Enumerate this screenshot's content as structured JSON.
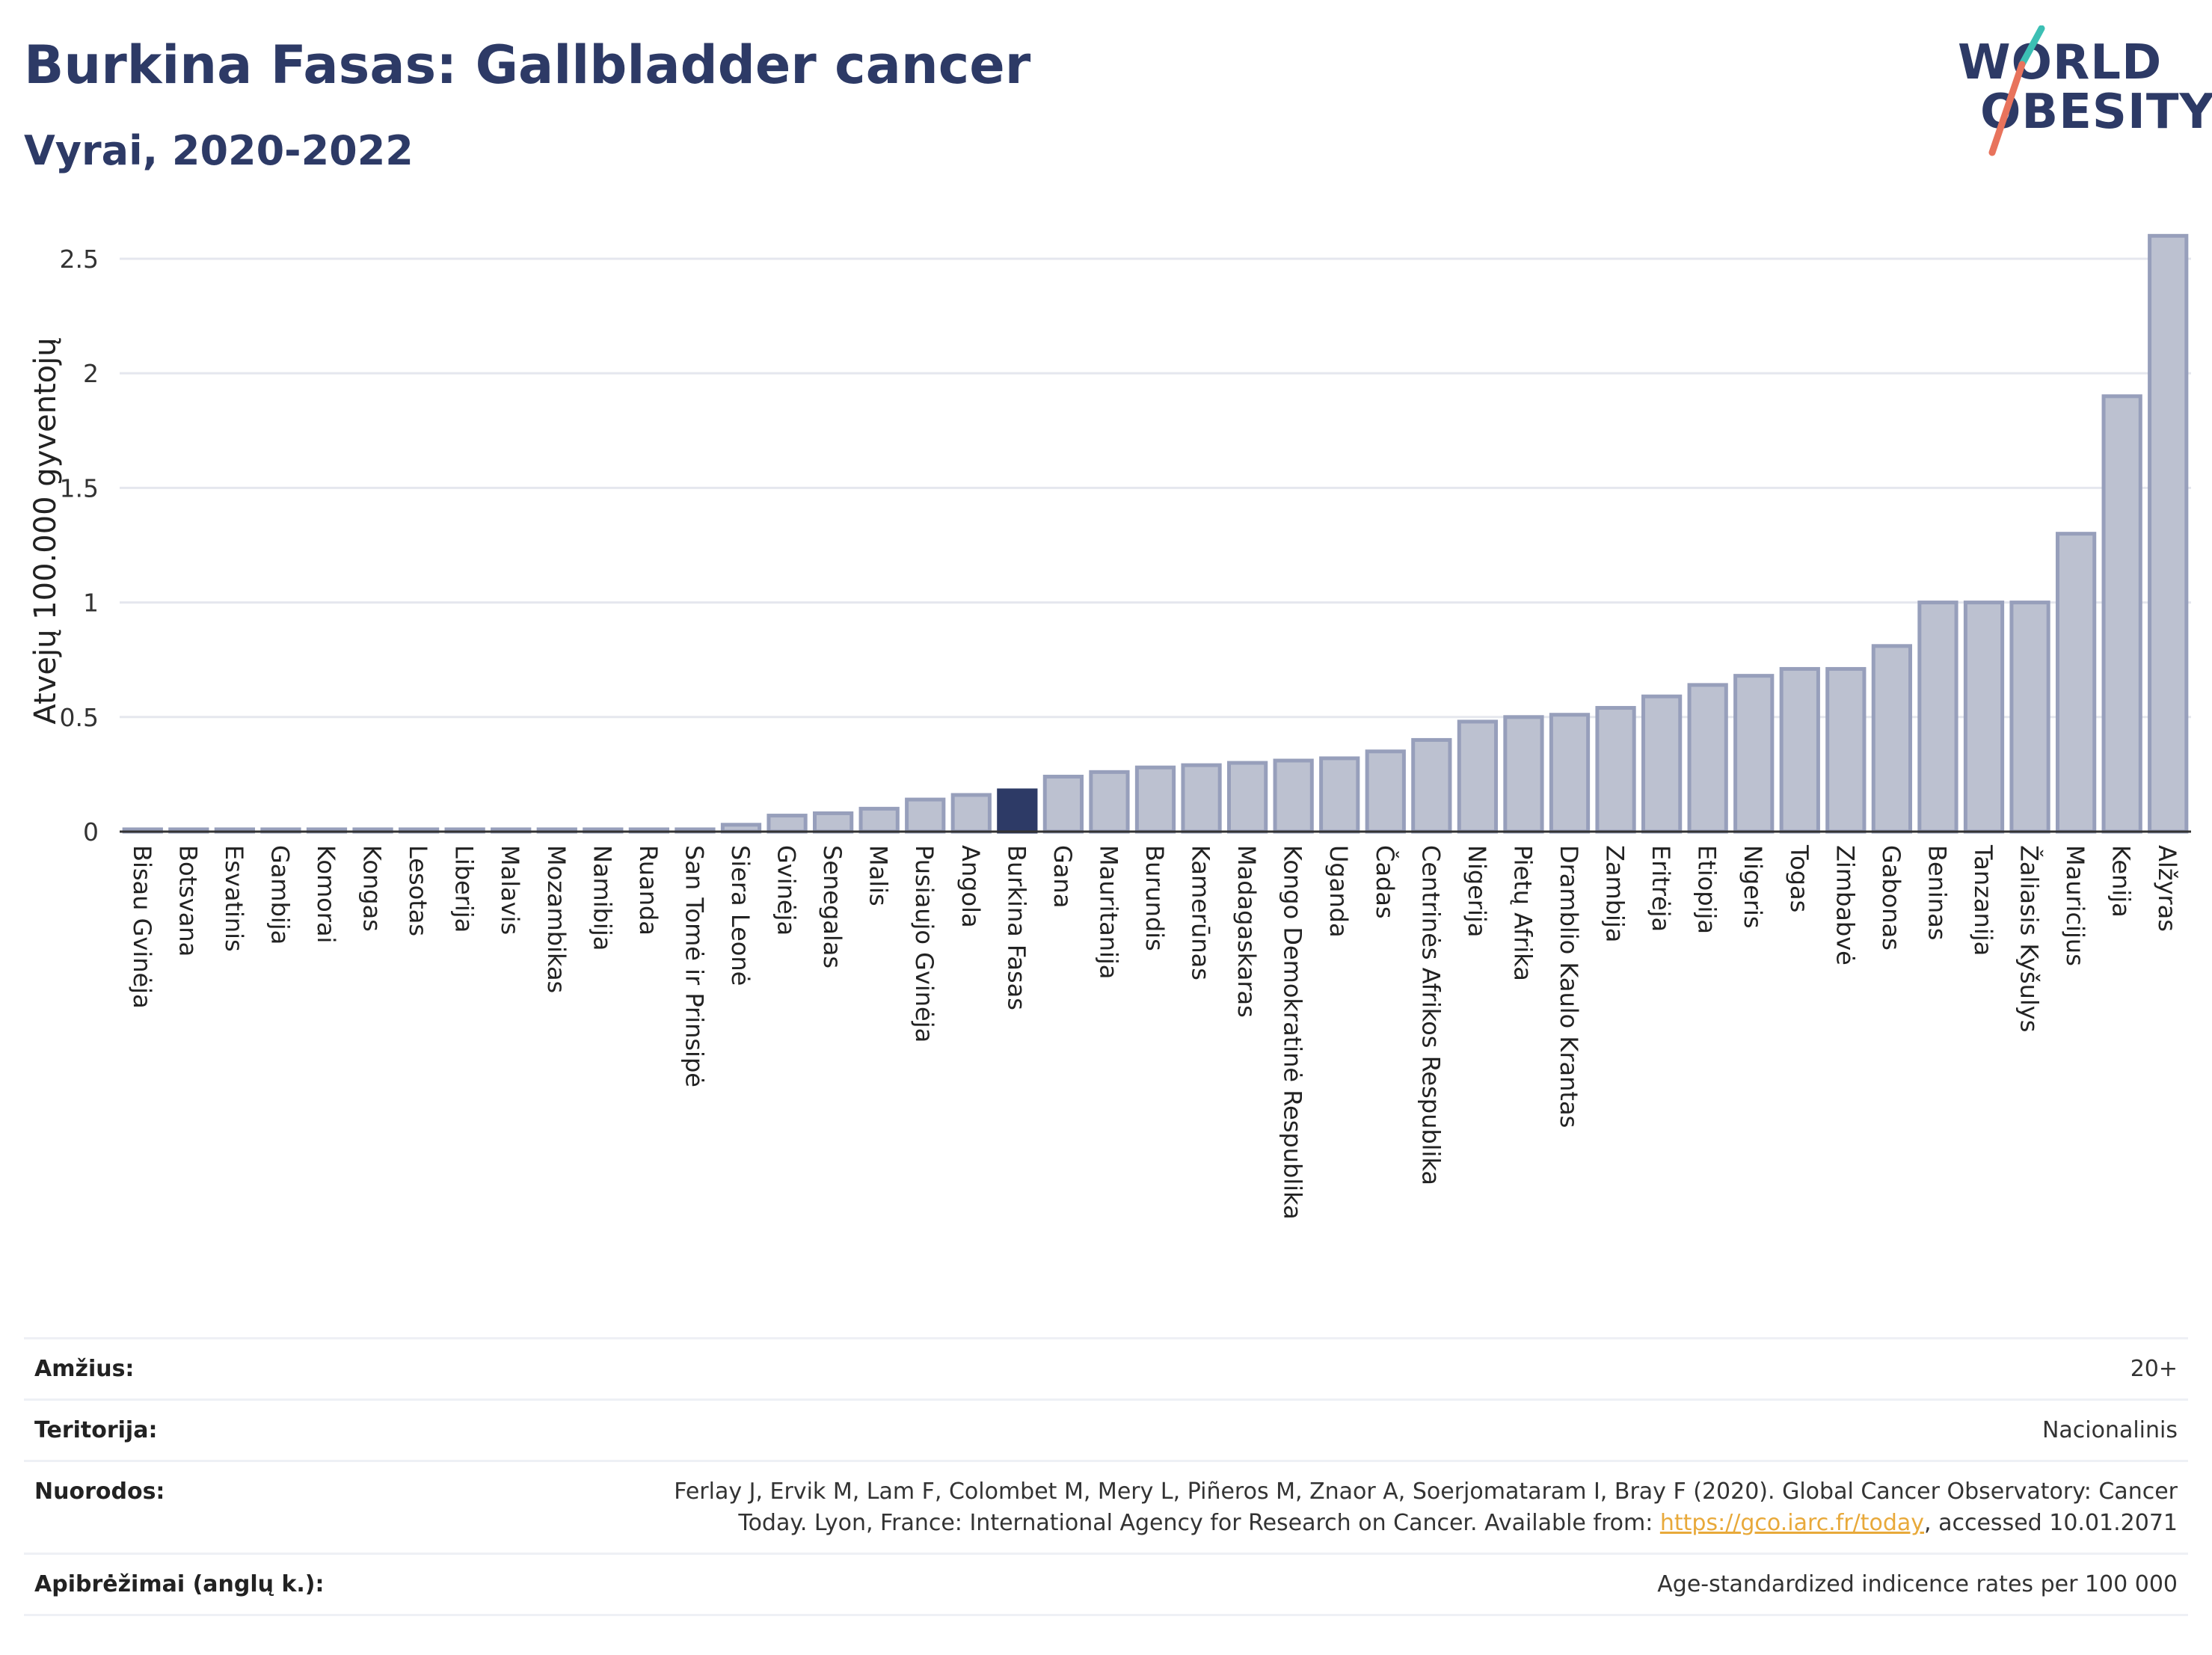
{
  "header": {
    "title": "Burkina Fasas: Gallbladder cancer",
    "subtitle": "Vyrai, 2020-2022"
  },
  "logo": {
    "line1": "WORLD",
    "line2": "OBESITY",
    "colors": {
      "text": "#2d3a66",
      "teal": "#3cbfb4",
      "coral": "#e8735c"
    }
  },
  "chart_data": {
    "type": "bar",
    "ylabel": "Atvejų 100.000 gyventojų",
    "ylim": [
      0,
      2.65
    ],
    "yticks": [
      0,
      0.5,
      1,
      1.5,
      2,
      2.5
    ],
    "ytick_labels": [
      "0",
      "0.5",
      "1",
      "1.5",
      "2",
      "2.5"
    ],
    "grid": true,
    "highlight_category": "Burkina Fasas",
    "colors": {
      "bar": "#bcc1d0",
      "bar_edge": "#979fbb",
      "highlight": "#2d3a66",
      "grid": "#e5e7ee",
      "axis": "#333333"
    },
    "categories": [
      "Bisau Gvinėja",
      "Botsvana",
      "Esvatinis",
      "Gambija",
      "Komorai",
      "Kongas",
      "Lesotas",
      "Liberija",
      "Malavis",
      "Mozambikas",
      "Namibija",
      "Ruanda",
      "San Tomė ir Prinsipė",
      "Siera Leonė",
      "Gvinėja",
      "Senegalas",
      "Malis",
      "Pusiaujo Gvinėja",
      "Angola",
      "Burkina Fasas",
      "Gana",
      "Mauritanija",
      "Burundis",
      "Kamerūnas",
      "Madagaskaras",
      "Kongo Demokratinė Respublika",
      "Uganda",
      "Čadas",
      "Centrinės Afrikos Respublika",
      "Nigerija",
      "Pietų Afrika",
      "Dramblio Kaulo Krantas",
      "Zambija",
      "Eritrėja",
      "Etiopija",
      "Nigeris",
      "Togas",
      "Zimbabvė",
      "Gabonas",
      "Beninas",
      "Tanzanija",
      "Žaliasis Kyšulys",
      "Mauricijus",
      "Kenija",
      "Alžyras"
    ],
    "values": [
      0.01,
      0.01,
      0.01,
      0.01,
      0.01,
      0.01,
      0.01,
      0.01,
      0.01,
      0.01,
      0.01,
      0.01,
      0.01,
      0.03,
      0.07,
      0.08,
      0.1,
      0.14,
      0.16,
      0.18,
      0.24,
      0.26,
      0.28,
      0.29,
      0.3,
      0.31,
      0.32,
      0.35,
      0.4,
      0.48,
      0.5,
      0.51,
      0.54,
      0.59,
      0.64,
      0.68,
      0.71,
      0.71,
      0.81,
      1.0,
      1.0,
      1.0,
      1.3,
      1.9,
      2.6
    ]
  },
  "info": {
    "age_label": "Amžius:",
    "age_value": "20+",
    "territory_label": "Teritorija:",
    "territory_value": "Nacionalinis",
    "refs_label": "Nuorodos:",
    "refs_line1": "Ferlay J, Ervik M, Lam F, Colombet M, Mery L, Piñeros M, Znaor A, Soerjomataram I, Bray F (2020). Global Cancer Observatory: Cancer",
    "refs_line2_pre": "Today. Lyon, France: International Agency for Research on Cancer. Available from: ",
    "refs_link": "https://gco.iarc.fr/today",
    "refs_line2_post": ", accessed 10.01.2071",
    "defs_label": "Apibrėžimai (anglų k.):",
    "defs_value": "Age-standardized indicence rates per 100 000"
  }
}
